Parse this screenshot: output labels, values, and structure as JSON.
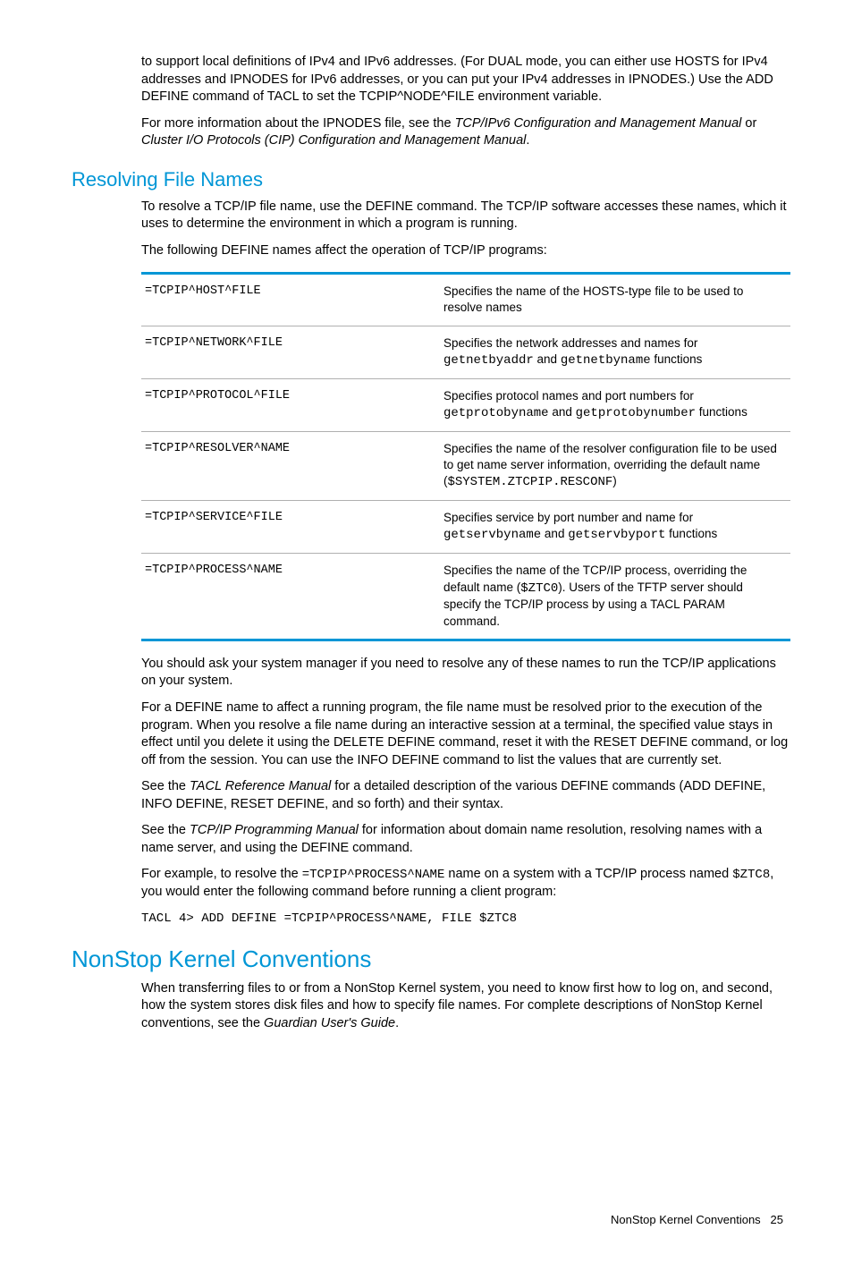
{
  "intro": {
    "p1_a": "to support local definitions of IPv4 and IPv6 addresses. (For DUAL mode, you can either use HOSTS for IPv4 addresses and IPNODES for IPv6 addresses, or you can put your IPv4 addresses in IPNODES.) Use the ADD DEFINE command of TACL to set the TCPIP^NODE^FILE environment variable.",
    "p2_a": "For more information about the IPNODES file, see the ",
    "p2_i1": "TCP/IPv6 Configuration and Management Manual",
    "p2_b": " or ",
    "p2_i2": "Cluster I/O Protocols (CIP) Configuration and Management Manual",
    "p2_c": "."
  },
  "resolving": {
    "heading": "Resolving File Names",
    "p1": "To resolve a TCP/IP file name, use the DEFINE command. The TCP/IP software accesses these names, which it uses to determine the environment in which a program is running.",
    "p2": "The following DEFINE names affect the operation of TCP/IP programs:",
    "table": {
      "r1n": "=TCPIP^HOST^FILE",
      "r1d": "Specifies the name of the HOSTS-type file to be used to resolve names",
      "r2n": "=TCPIP^NETWORK^FILE",
      "r2d_a": "Specifies the network addresses and names for ",
      "r2d_m1": "getnetbyaddr",
      "r2d_b": " and ",
      "r2d_m2": "getnetbyname",
      "r2d_c": " functions",
      "r3n": "=TCPIP^PROTOCOL^FILE",
      "r3d_a": "Specifies protocol names and port numbers for ",
      "r3d_m1": "getprotobyname",
      "r3d_b": " and ",
      "r3d_m2": "getprotobynumber",
      "r3d_c": " functions",
      "r4n": "=TCPIP^RESOLVER^NAME",
      "r4d_a": "Specifies the name of the resolver configuration file to be used to get name server information, overriding the default name (",
      "r4d_m1": "$SYSTEM.ZTCPIP.RESCONF",
      "r4d_b": ")",
      "r5n": "=TCPIP^SERVICE^FILE",
      "r5d_a": "Specifies service by port number and name for ",
      "r5d_m1": "getservbyname",
      "r5d_b": " and ",
      "r5d_m2": "getservbyport",
      "r5d_c": " functions",
      "r6n": "=TCPIP^PROCESS^NAME",
      "r6d_a": "Specifies the name of the TCP/IP process, overriding the default name (",
      "r6d_m1": "$ZTC0",
      "r6d_b": "). Users of the TFTP server should specify the TCP/IP process by using a TACL PARAM command."
    },
    "p3": "You should ask your system manager if you need to resolve any of these names to run the TCP/IP applications on your system.",
    "p4": "For a DEFINE name to affect a running program, the file name must be resolved prior to the execution of the program. When you resolve a file name during an interactive session at a terminal, the specified value stays in effect until you delete it using the DELETE DEFINE command, reset it with the RESET DEFINE command, or log off from the session. You can use the INFO DEFINE command to list the values that are currently set.",
    "p5_a": "See the ",
    "p5_i1": "TACL Reference Manual",
    "p5_b": " for a detailed description of the various DEFINE commands (ADD DEFINE, INFO DEFINE, RESET DEFINE, and so forth) and their syntax.",
    "p6_a": "See the ",
    "p6_i1": "TCP/IP Programming Manual",
    "p6_b": " for information about domain name resolution, resolving names with a name server, and using the DEFINE command.",
    "p7_a": "For example, to resolve the ",
    "p7_m1": "=TCPIP^PROCESS^NAME",
    "p7_b": " name on a system with a TCP/IP process named ",
    "p7_m2": "$ZTC8",
    "p7_c": ", you would enter the following command before running a client program:",
    "code": "TACL 4> ADD DEFINE =TCPIP^PROCESS^NAME, FILE $ZTC8"
  },
  "nonstop": {
    "heading": "NonStop Kernel Conventions",
    "p1_a": "When transferring files to or from a NonStop Kernel system, you need to know first how to log on, and second, how the system stores disk files and how to specify file names. For complete descriptions of NonStop Kernel conventions, see the ",
    "p1_i1": "Guardian User's Guide",
    "p1_b": "."
  },
  "footer": {
    "label": "NonStop Kernel Conventions",
    "pagenum": "25"
  }
}
